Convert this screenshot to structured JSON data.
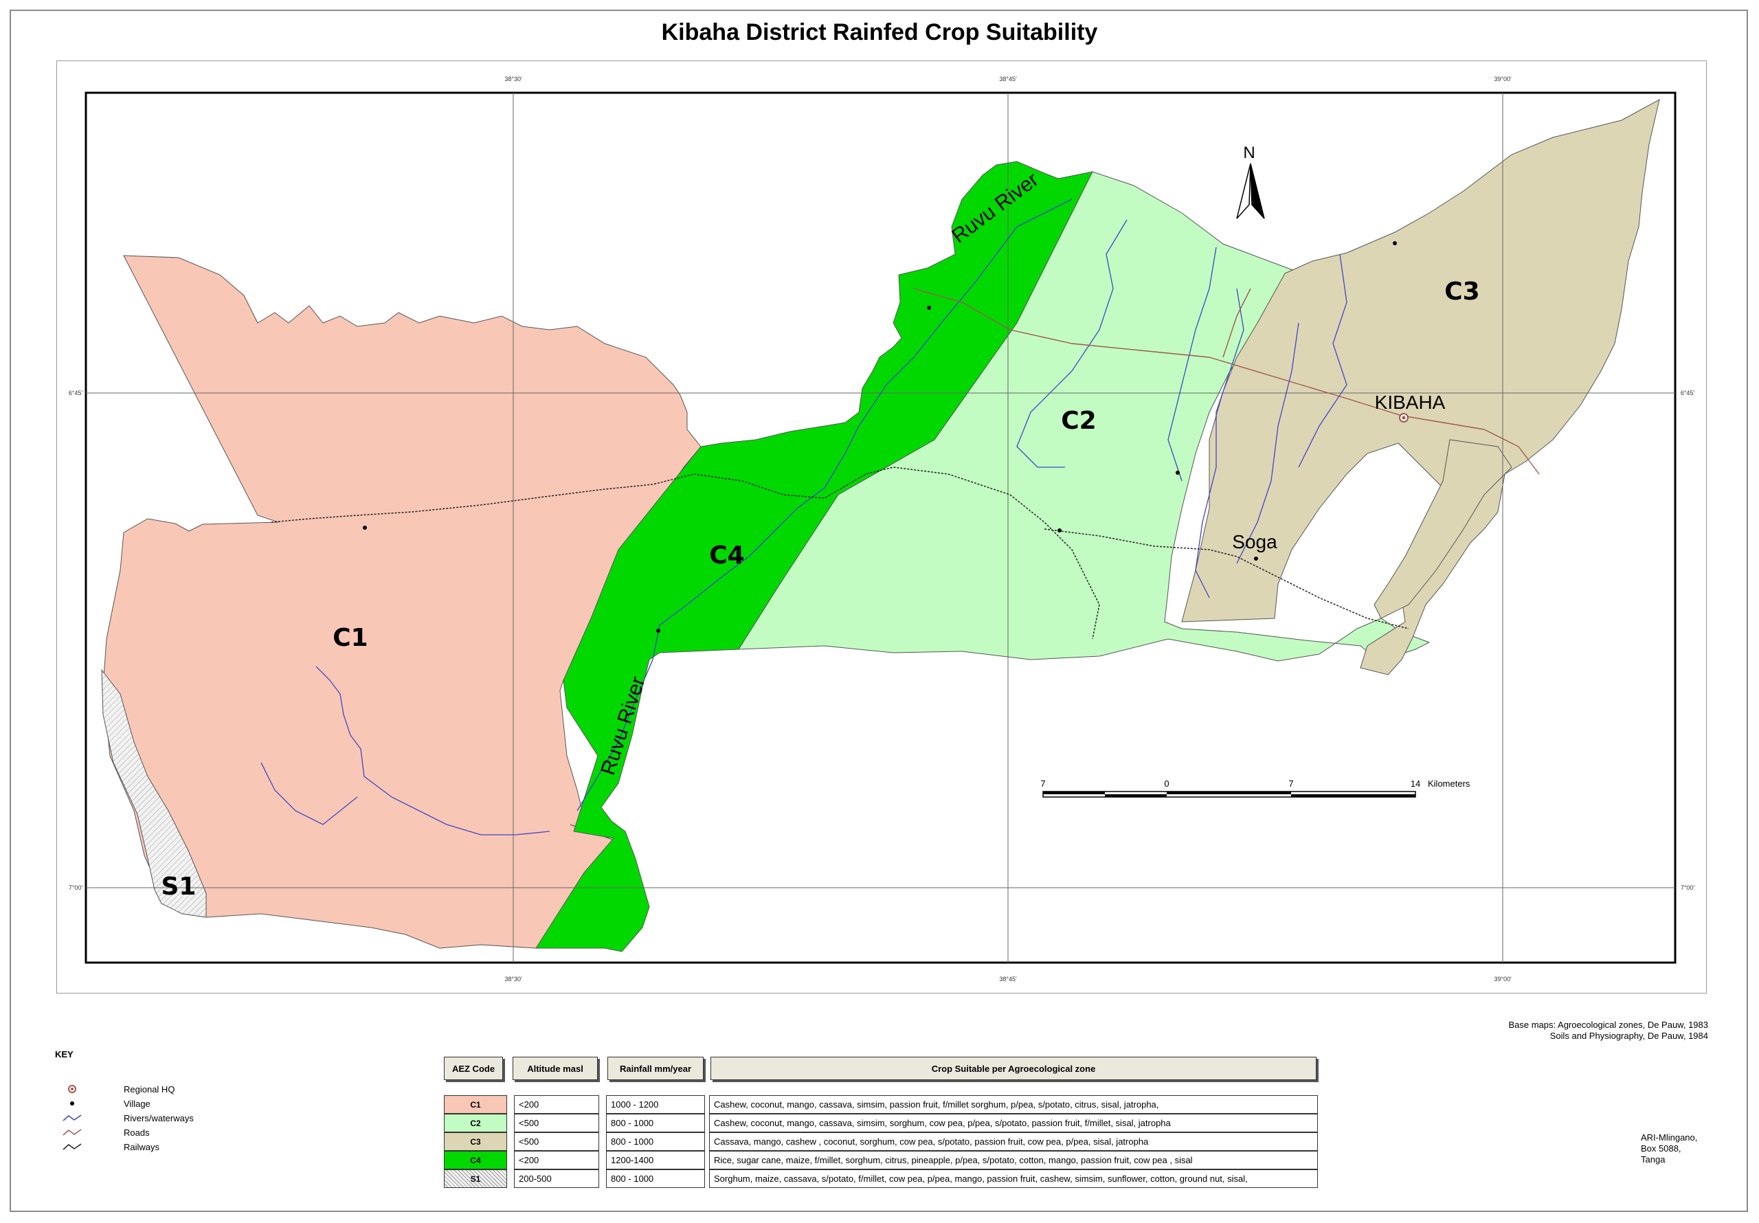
{
  "title": "Kibaha District Rainfed Crop Suitability",
  "map": {
    "zones": [
      {
        "code": "C1",
        "color": "#f9c7b6"
      },
      {
        "code": "C2",
        "color": "#c2fcc2"
      },
      {
        "code": "C3",
        "color": "#ddd6b5"
      },
      {
        "code": "C4",
        "color": "#00d800"
      },
      {
        "code": "S1",
        "color": "#ececec"
      }
    ],
    "place_labels": {
      "kibaha": "KIBAHA",
      "soga": "Soga"
    },
    "river_labels": {
      "upper": "Ruvu River",
      "lower": "Ruvu River"
    },
    "north_label": "N",
    "graticule": {
      "top": [
        "38°30'",
        "38°45'",
        "39°00'"
      ],
      "bottom": [
        "38°30'",
        "38°45'",
        "39°00'"
      ],
      "left": [
        "6°45'",
        "7°00'"
      ],
      "right": [
        "6°45'",
        "7°00'"
      ]
    },
    "scale_bar": {
      "ticks": [
        "7",
        "0",
        "7",
        "14"
      ],
      "unit": "Kilometers"
    }
  },
  "key": {
    "title": "KEY",
    "items": [
      {
        "label": "Regional HQ",
        "icon": "regional-hq-icon"
      },
      {
        "label": "Village",
        "icon": "village-icon"
      },
      {
        "label": "Rivers/waterways",
        "icon": "river-icon"
      },
      {
        "label": "Roads",
        "icon": "road-icon"
      },
      {
        "label": "Railways",
        "icon": "railway-icon"
      }
    ]
  },
  "table": {
    "headers": {
      "code": "AEZ Code",
      "altitude": "Altitude masl",
      "rainfall": "Rainfall mm/year",
      "crops": "Crop Suitable per Agroecological zone"
    },
    "rows": [
      {
        "code": "C1",
        "color": "#f9c7b6",
        "altitude": "<200",
        "rainfall": "1000 - 1200",
        "crops": "Cashew, coconut, mango, cassava, simsim, passion fruit, f/millet sorghum, p/pea, s/potato, citrus, sisal, jatropha,"
      },
      {
        "code": "C2",
        "color": "#c2fcc2",
        "altitude": "<500",
        "rainfall": "800 - 1000",
        "crops": "Cashew, coconut, mango, cassava, simsim, sorghum, cow pea, p/pea, s/potato, passion fruit, f/millet, sisal, jatropha"
      },
      {
        "code": "C3",
        "color": "#ddd6b5",
        "altitude": "<500",
        "rainfall": "800 - 1000",
        "crops": "Cassava, mango, cashew , coconut, sorghum, cow pea, s/potato, passion fruit, cow pea, p/pea, sisal, jatropha"
      },
      {
        "code": "C4",
        "color": "#00d800",
        "altitude": "<200",
        "rainfall": "1200-1400",
        "crops": "Rice, sugar cane, maize, f/millet, sorghum, citrus, pineapple, p/pea, s/potato, cotton, mango, passion fruit, cow pea , sisal"
      },
      {
        "code": "S1",
        "color": "#ececec",
        "altitude": "200-500",
        "rainfall": "800 - 1000",
        "crops": "Sorghum, maize, cassava, s/potato, f/millet, cow pea, p/pea, mango, passion fruit, cashew, simsim, sunflower, cotton, ground nut, sisal,"
      }
    ]
  },
  "credits": {
    "line1": "Base maps: Agroecological zones, De Pauw, 1983",
    "line2": "Soils and Physiography, De Pauw, 1984"
  },
  "address": {
    "line1": "ARI-Mlingano,",
    "line2": "Box 5088,",
    "line3": "Tanga"
  }
}
